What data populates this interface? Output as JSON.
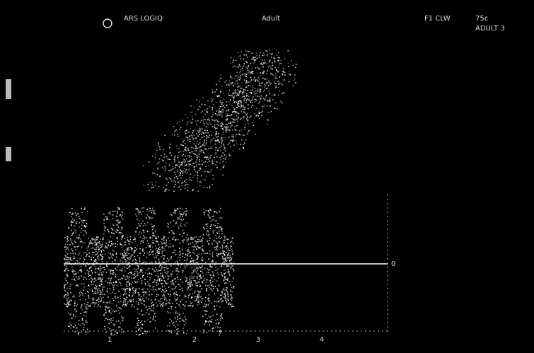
{
  "header": {
    "probe": "ARS LOGIQ",
    "mode": "Adult",
    "label": "F1 CLW",
    "frequency": "75c",
    "preset": "ADULT 3"
  },
  "spectrum": {
    "baseline_label": "0",
    "time_labels": [
      "1",
      "2",
      "3",
      "4"
    ]
  }
}
